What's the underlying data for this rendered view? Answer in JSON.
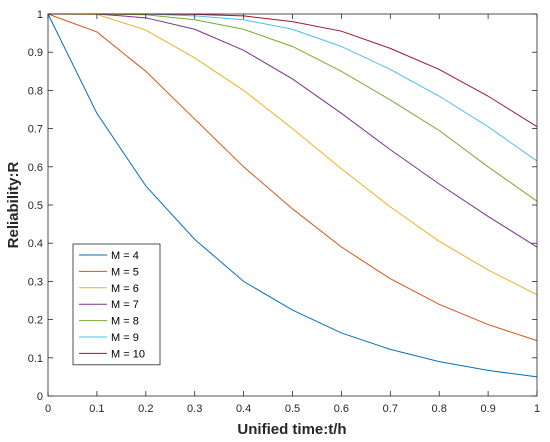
{
  "chart_data": {
    "type": "line",
    "title": "",
    "xlabel": "Unified time:t/h",
    "ylabel": "Reliability:R",
    "xlim": [
      0,
      1
    ],
    "ylim": [
      0,
      1
    ],
    "xticks": [
      0,
      0.1,
      0.2,
      0.3,
      0.4,
      0.5,
      0.6,
      0.7,
      0.8,
      0.9,
      1
    ],
    "xtick_labels": [
      "0",
      "0.1",
      "0.2",
      "0.3",
      "0.4",
      "0.5",
      "0.6",
      "0.7",
      "0.8",
      "0.9",
      "1"
    ],
    "yticks": [
      0,
      0.1,
      0.2,
      0.3,
      0.4,
      0.5,
      0.6,
      0.7,
      0.8,
      0.9,
      1
    ],
    "ytick_labels": [
      "0",
      "0.1",
      "0.2",
      "0.3",
      "0.4",
      "0.5",
      "0.6",
      "0.7",
      "0.8",
      "0.9",
      "1"
    ],
    "grid": false,
    "legend_position": "bottom-left",
    "x": [
      0,
      0.1,
      0.2,
      0.3,
      0.4,
      0.5,
      0.6,
      0.7,
      0.8,
      0.9,
      1
    ],
    "series": [
      {
        "name": "M = 4",
        "color": "#0072BD",
        "values": [
          1,
          0.74,
          0.55,
          0.41,
          0.3,
          0.225,
          0.165,
          0.122,
          0.09,
          0.067,
          0.05
        ]
      },
      {
        "name": "M = 5",
        "color": "#D95319",
        "values": [
          1,
          0.953,
          0.85,
          0.725,
          0.6,
          0.49,
          0.39,
          0.307,
          0.24,
          0.187,
          0.145
        ]
      },
      {
        "name": "M = 6",
        "color": "#EDB120",
        "values": [
          1,
          0.999,
          0.958,
          0.885,
          0.8,
          0.7,
          0.595,
          0.495,
          0.405,
          0.33,
          0.265
        ]
      },
      {
        "name": "M = 7",
        "color": "#7E2F8E",
        "values": [
          1,
          1,
          0.99,
          0.96,
          0.905,
          0.83,
          0.74,
          0.645,
          0.555,
          0.47,
          0.39
        ]
      },
      {
        "name": "M = 8",
        "color": "#77AC30",
        "values": [
          1,
          1,
          0.998,
          0.985,
          0.96,
          0.915,
          0.85,
          0.775,
          0.695,
          0.6,
          0.51
        ]
      },
      {
        "name": "M = 9",
        "color": "#4DBEEE",
        "values": [
          1,
          1,
          1,
          0.995,
          0.985,
          0.96,
          0.915,
          0.855,
          0.785,
          0.705,
          0.615
        ]
      },
      {
        "name": "M = 10",
        "color": "#A2142F",
        "values": [
          1,
          1,
          1,
          0.999,
          0.995,
          0.98,
          0.955,
          0.91,
          0.855,
          0.785,
          0.705
        ]
      }
    ]
  }
}
